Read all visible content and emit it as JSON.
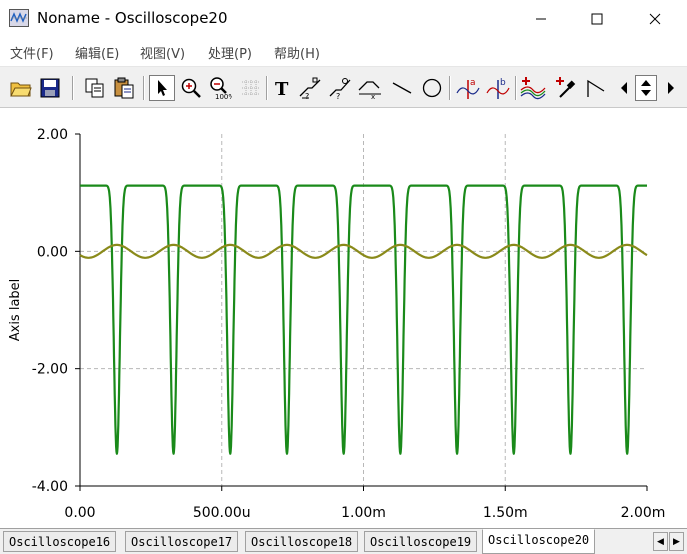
{
  "window": {
    "title": "Noname - Oscilloscope20",
    "icon": "oscilloscope-app-icon",
    "controls": [
      "minimize-icon",
      "maximize-icon",
      "close-icon"
    ]
  },
  "menu": {
    "items": [
      {
        "label": "文件(F)"
      },
      {
        "label": "编辑(E)"
      },
      {
        "label": "视图(V)"
      },
      {
        "label": "处理(P)"
      },
      {
        "label": "帮助(H)"
      }
    ]
  },
  "toolbar": {
    "buttons": [
      "open-folder-icon",
      "save-icon",
      "copy-icon",
      "paste-icon",
      "pointer-icon",
      "zoom-in-icon",
      "zoom-100-icon",
      "grid-icon",
      "text-icon",
      "cursor-marker-1-icon",
      "cursor-marker-2-icon",
      "step-marker-icon",
      "line-icon",
      "circle-icon",
      "cursor-a-icon",
      "cursor-b-icon",
      "waveform-color-icon",
      "dropper-icon",
      "trace-slope-icon",
      "scroll-left-icon",
      "scroll-up-down-icon",
      "scroll-right-icon"
    ]
  },
  "chart_data": {
    "type": "line",
    "title": "",
    "xlabel": "",
    "ylabel": "Axis label",
    "xlim": [
      0,
      0.002
    ],
    "ylim": [
      -4,
      2
    ],
    "x_ticks": [
      "0.00",
      "500.00u",
      "1.00m",
      "1.50m",
      "2.00m"
    ],
    "y_ticks": [
      "2.00",
      "0.00",
      "-2.00",
      "-4.00"
    ],
    "grid": true,
    "grid_style": "dashed",
    "series": [
      {
        "color": "#1a8a1a",
        "shape": "clipped pulse",
        "period": 0.0002,
        "high": 1.12,
        "low": -3.45,
        "first_min_at": 0.00013
      },
      {
        "color": "#8a8a1a",
        "shape": "sine",
        "period": 0.0002,
        "amplitude": 0.11,
        "offset": 0.0,
        "first_max_at": 0.00013
      }
    ]
  },
  "tabs": {
    "items": [
      {
        "label": "Oscilloscope16",
        "active": false
      },
      {
        "label": "Oscilloscope17",
        "active": false
      },
      {
        "label": "Oscilloscope18",
        "active": false
      },
      {
        "label": "Oscilloscope19",
        "active": false
      },
      {
        "label": "Oscilloscope20",
        "active": true
      }
    ]
  }
}
